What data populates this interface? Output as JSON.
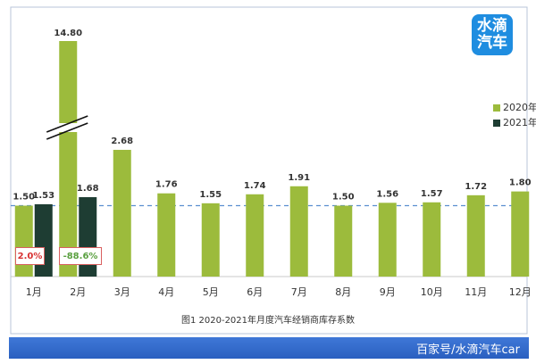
{
  "chart_data": {
    "type": "bar",
    "title": "",
    "caption": "图1  2020-2021年月度汽车经销商库存系数",
    "categories": [
      "1月",
      "2月",
      "3月",
      "4月",
      "5月",
      "6月",
      "7月",
      "8月",
      "9月",
      "10月",
      "11月",
      "12月"
    ],
    "series": [
      {
        "name": "2020年",
        "color": "#9cbb3c",
        "values": [
          1.5,
          14.8,
          2.68,
          1.76,
          1.55,
          1.74,
          1.91,
          1.5,
          1.56,
          1.57,
          1.72,
          1.8
        ]
      },
      {
        "name": "2021年",
        "color": "#1e3d33",
        "values": [
          1.53,
          1.68,
          null,
          null,
          null,
          null,
          null,
          null,
          null,
          null,
          null,
          null
        ]
      }
    ],
    "value_labels_2020": [
      "1.50",
      "14.80",
      "2.68",
      "1.76",
      "1.55",
      "1.74",
      "1.91",
      "1.50",
      "1.56",
      "1.57",
      "1.72",
      "1.80"
    ],
    "value_labels_2021": [
      "1.53",
      "1.68"
    ],
    "yoy_labels": [
      "2.0%",
      "-88.6%"
    ],
    "yoy_colors": [
      "#d83030",
      "#5aa040"
    ],
    "reference_line": 1.5,
    "axis_break": true,
    "grid": false,
    "legend": "right"
  },
  "watermark": "百家号/水滴汽车car",
  "logo": {
    "line1": "水滴",
    "line2": "汽车"
  }
}
